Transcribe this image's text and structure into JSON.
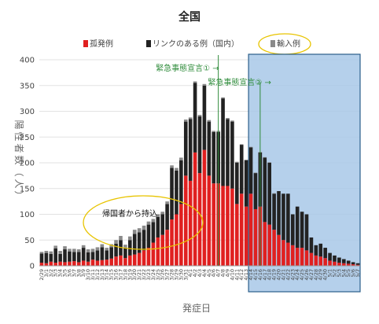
{
  "chart_data": {
    "type": "bar",
    "stacked": true,
    "title": "全国",
    "xlabel": "発症日",
    "ylabel": "陽性者数（人）",
    "ylim": [
      0,
      400
    ],
    "yticks": [
      0,
      50,
      100,
      150,
      200,
      250,
      300,
      350,
      400
    ],
    "grid": true,
    "legend_position": "top",
    "categories": [
      "2/29",
      "3/1",
      "3/2",
      "3/3",
      "3/4",
      "3/5",
      "3/6",
      "3/7",
      "3/8",
      "3/9",
      "3/10",
      "3/11",
      "3/12",
      "3/13",
      "3/14",
      "3/15",
      "3/16",
      "3/17",
      "3/18",
      "3/19",
      "3/20",
      "3/21",
      "3/22",
      "3/23",
      "3/24",
      "3/25",
      "3/26",
      "3/27",
      "3/28",
      "3/29",
      "3/30",
      "3/31",
      "4/1",
      "4/2",
      "4/3",
      "4/4",
      "4/5",
      "4/6",
      "4/7",
      "4/8",
      "4/9",
      "4/10",
      "4/11",
      "4/12",
      "4/13",
      "4/14",
      "4/15",
      "4/16",
      "4/17",
      "4/18",
      "4/19",
      "4/20",
      "4/21",
      "4/22",
      "4/23",
      "4/24",
      "4/25",
      "4/26",
      "4/27",
      "4/28",
      "4/29",
      "4/30",
      "5/1",
      "5/2",
      "5/3",
      "5/4",
      "5/5",
      "5/6",
      "5/7"
    ],
    "x_tick_labels": [
      "2/29",
      "3/1",
      "3/2",
      "3/3",
      "3/4",
      "3/5",
      "3/6",
      "3/7",
      "3/8",
      "3/9",
      "3/10",
      "3/11",
      "3/12",
      "3/13",
      "3/14",
      "3/15",
      "3/16",
      "3/17",
      "3/18",
      "3/19",
      "3/20",
      "3/21",
      "3/22",
      "3/23",
      "3/24",
      "3/25",
      "3/26",
      "3/27",
      "3/28",
      "3/29",
      "3/30",
      "3/31",
      "4/1",
      "4/2",
      "4/3",
      "4/4",
      "4/5",
      "4/6",
      "4/7",
      "4/8",
      "4/9",
      "4/10",
      "4/11",
      "4/12",
      "4/13",
      "4/14",
      "4/15",
      "4/16",
      "4/17",
      "4/18",
      "4/19",
      "4/20",
      "4/21",
      "4/22",
      "4/23",
      "4/24",
      "4/25",
      "4/26",
      "4/27",
      "4/28",
      "4/29",
      "4/30",
      "5/1",
      "5/2",
      "5/3",
      "5/4",
      "5/5",
      "5/6",
      "5/7"
    ],
    "series": [
      {
        "name": "孤発例",
        "color": "#e02020",
        "values": [
          6,
          5,
          8,
          6,
          8,
          7,
          8,
          9,
          7,
          10,
          8,
          12,
          10,
          11,
          12,
          14,
          18,
          20,
          15,
          20,
          22,
          25,
          30,
          35,
          45,
          55,
          60,
          70,
          90,
          100,
          120,
          175,
          165,
          220,
          180,
          225,
          175,
          160,
          160,
          155,
          155,
          150,
          120,
          140,
          115,
          140,
          110,
          115,
          85,
          80,
          70,
          60,
          50,
          45,
          40,
          35,
          35,
          30,
          25,
          20,
          18,
          15,
          10,
          8,
          6,
          5,
          4,
          3,
          2
        ]
      },
      {
        "name": "リンクのある例（国内）",
        "color": "#222222",
        "values": [
          18,
          20,
          15,
          28,
          15,
          25,
          20,
          18,
          20,
          25,
          18,
          15,
          20,
          25,
          18,
          22,
          25,
          30,
          20,
          30,
          40,
          40,
          40,
          45,
          40,
          40,
          40,
          50,
          100,
          85,
          85,
          105,
          120,
          135,
          110,
          125,
          105,
          100,
          100,
          170,
          130,
          130,
          80,
          95,
          90,
          90,
          70,
          105,
          125,
          120,
          70,
          85,
          90,
          95,
          60,
          80,
          70,
          70,
          30,
          20,
          25,
          20,
          15,
          12,
          10,
          8,
          6,
          4,
          3
        ]
      },
      {
        "name": "輸入例",
        "color": "#8a8a8a",
        "values": [
          3,
          4,
          5,
          5,
          6,
          6,
          5,
          6,
          5,
          5,
          6,
          6,
          6,
          6,
          5,
          6,
          7,
          8,
          6,
          7,
          8,
          8,
          8,
          6,
          6,
          5,
          5,
          5,
          5,
          5,
          5,
          4,
          3,
          3,
          3,
          3,
          3,
          2,
          2,
          2,
          2,
          2,
          2,
          1,
          1,
          1,
          1,
          1,
          1,
          1,
          1,
          0,
          0,
          0,
          0,
          0,
          0,
          0,
          0,
          0,
          0,
          0,
          0,
          0,
          0,
          0,
          0,
          0,
          0
        ]
      }
    ],
    "annotations": [
      {
        "text": "緊急事態宣言① →",
        "at": "4/7",
        "color": "#2e8b3a"
      },
      {
        "text": "緊急事態宣言② →",
        "at": "4/16",
        "color": "#2e8b3a"
      },
      {
        "text": "帰国者から持込",
        "type": "callout-ellipse"
      }
    ],
    "highlight_region": {
      "from": "4/14",
      "to": "5/7",
      "color": "#a8c8e8"
    }
  }
}
